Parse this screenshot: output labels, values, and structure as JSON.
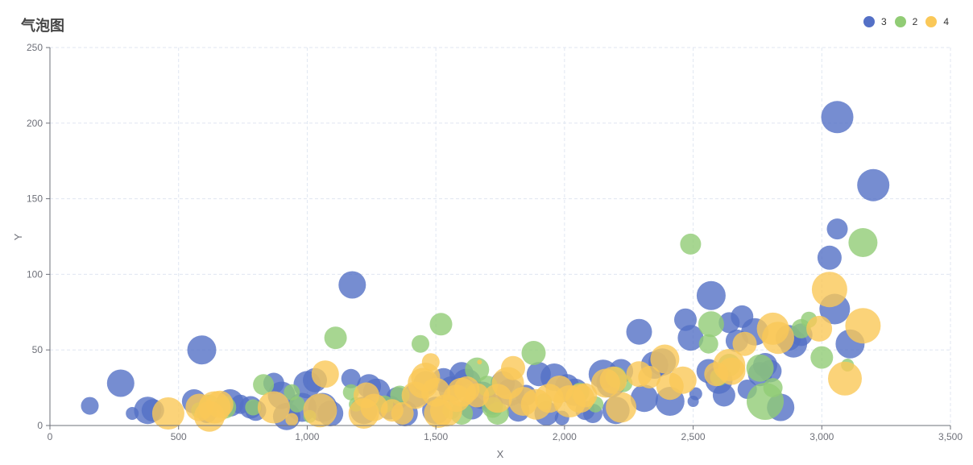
{
  "title": "气泡图",
  "legend": [
    {
      "name": "3",
      "color": "#5470c6"
    },
    {
      "name": "2",
      "color": "#91cc75"
    },
    {
      "name": "4",
      "color": "#fac858"
    }
  ],
  "chart_data": {
    "type": "scatter",
    "subtype": "bubble",
    "title": "气泡图",
    "xlabel": "X",
    "ylabel": "Y",
    "xlim": [
      0,
      3500
    ],
    "ylim": [
      0,
      250
    ],
    "xticks": [
      0,
      500,
      1000,
      1500,
      2000,
      2500,
      3000,
      3500
    ],
    "xtick_labels": [
      "0",
      "500",
      "1,000",
      "1,500",
      "2,000",
      "2,500",
      "3,000",
      "3,500"
    ],
    "yticks": [
      0,
      50,
      100,
      150,
      200,
      250
    ],
    "ytick_labels": [
      "0",
      "50",
      "100",
      "150",
      "200",
      "250"
    ],
    "grid": true,
    "legend_position": "top-right",
    "note": "each point is [x, y, bubble_radius_px]",
    "series": [
      {
        "name": "3",
        "color": "#5470c6",
        "points": [
          [
            155,
            13,
            11
          ],
          [
            275,
            28,
            17
          ],
          [
            320,
            8,
            8
          ],
          [
            380,
            10,
            17
          ],
          [
            400,
            10,
            14
          ],
          [
            560,
            16,
            15
          ],
          [
            590,
            50,
            18
          ],
          [
            610,
            8,
            12
          ],
          [
            700,
            15,
            17
          ],
          [
            740,
            14,
            12
          ],
          [
            780,
            12,
            14
          ],
          [
            800,
            10,
            13
          ],
          [
            870,
            28,
            13
          ],
          [
            900,
            20,
            17
          ],
          [
            920,
            6,
            17
          ],
          [
            980,
            12,
            18
          ],
          [
            1000,
            27,
            17
          ],
          [
            1030,
            30,
            15
          ],
          [
            1060,
            12,
            18
          ],
          [
            1090,
            8,
            16
          ],
          [
            1170,
            31,
            12
          ],
          [
            1175,
            93,
            17
          ],
          [
            1220,
            10,
            17
          ],
          [
            1240,
            26,
            15
          ],
          [
            1270,
            22,
            17
          ],
          [
            1320,
            12,
            15
          ],
          [
            1350,
            18,
            14
          ],
          [
            1380,
            8,
            16
          ],
          [
            1420,
            20,
            15
          ],
          [
            1460,
            28,
            15
          ],
          [
            1500,
            10,
            17
          ],
          [
            1530,
            30,
            15
          ],
          [
            1560,
            24,
            16
          ],
          [
            1600,
            34,
            15
          ],
          [
            1620,
            28,
            18
          ],
          [
            1640,
            12,
            15
          ],
          [
            1680,
            20,
            17
          ],
          [
            1720,
            14,
            13
          ],
          [
            1760,
            28,
            15
          ],
          [
            1790,
            22,
            17
          ],
          [
            1820,
            10,
            14
          ],
          [
            1850,
            20,
            13
          ],
          [
            1900,
            34,
            15
          ],
          [
            1930,
            8,
            15
          ],
          [
            1960,
            32,
            17
          ],
          [
            1990,
            5,
            9
          ],
          [
            2010,
            26,
            15
          ],
          [
            2040,
            22,
            17
          ],
          [
            2080,
            10,
            12
          ],
          [
            2110,
            8,
            12
          ],
          [
            2150,
            34,
            18
          ],
          [
            2180,
            28,
            18
          ],
          [
            2200,
            10,
            17
          ],
          [
            2220,
            36,
            15
          ],
          [
            2290,
            62,
            16
          ],
          [
            2310,
            18,
            17
          ],
          [
            2350,
            40,
            17
          ],
          [
            2380,
            42,
            17
          ],
          [
            2410,
            16,
            18
          ],
          [
            2470,
            70,
            14
          ],
          [
            2490,
            58,
            16
          ],
          [
            2510,
            21,
            8
          ],
          [
            2500,
            16,
            7
          ],
          [
            2570,
            86,
            18
          ],
          [
            2560,
            36,
            15
          ],
          [
            2600,
            30,
            17
          ],
          [
            2620,
            20,
            14
          ],
          [
            2640,
            68,
            13
          ],
          [
            2670,
            56,
            14
          ],
          [
            2690,
            72,
            14
          ],
          [
            2710,
            24,
            12
          ],
          [
            2740,
            62,
            17
          ],
          [
            2760,
            34,
            15
          ],
          [
            2780,
            40,
            15
          ],
          [
            2800,
            36,
            14
          ],
          [
            2840,
            12,
            17
          ],
          [
            2870,
            58,
            16
          ],
          [
            2890,
            54,
            17
          ],
          [
            2920,
            60,
            14
          ],
          [
            3030,
            111,
            15
          ],
          [
            3050,
            77,
            19
          ],
          [
            3060,
            130,
            13
          ],
          [
            3060,
            204,
            20
          ],
          [
            3110,
            54,
            18
          ],
          [
            3200,
            159,
            20
          ]
        ]
      },
      {
        "name": "2",
        "color": "#91cc75",
        "points": [
          [
            580,
            10,
            10
          ],
          [
            620,
            14,
            12
          ],
          [
            680,
            12,
            14
          ],
          [
            790,
            12,
            10
          ],
          [
            830,
            27,
            13
          ],
          [
            940,
            22,
            10
          ],
          [
            960,
            14,
            10
          ],
          [
            1010,
            6,
            8
          ],
          [
            1110,
            58,
            14
          ],
          [
            1170,
            22,
            10
          ],
          [
            1190,
            14,
            9
          ],
          [
            1300,
            14,
            11
          ],
          [
            1360,
            20,
            12
          ],
          [
            1440,
            54,
            11
          ],
          [
            1520,
            67,
            14
          ],
          [
            1560,
            10,
            11
          ],
          [
            1600,
            8,
            14
          ],
          [
            1660,
            37,
            15
          ],
          [
            1700,
            26,
            13
          ],
          [
            1720,
            12,
            13
          ],
          [
            1740,
            8,
            14
          ],
          [
            1880,
            48,
            15
          ],
          [
            1920,
            16,
            10
          ],
          [
            2060,
            22,
            12
          ],
          [
            2120,
            14,
            10
          ],
          [
            2200,
            32,
            13
          ],
          [
            2230,
            28,
            11
          ],
          [
            2490,
            120,
            13
          ],
          [
            2560,
            54,
            12
          ],
          [
            2570,
            67,
            16
          ],
          [
            2600,
            32,
            11
          ],
          [
            2640,
            40,
            14
          ],
          [
            2760,
            38,
            17
          ],
          [
            2780,
            16,
            23
          ],
          [
            2810,
            25,
            12
          ],
          [
            2920,
            64,
            12
          ],
          [
            2950,
            70,
            10
          ],
          [
            3000,
            45,
            14
          ],
          [
            3100,
            40,
            8
          ],
          [
            3160,
            121,
            18
          ]
        ]
      },
      {
        "name": "4",
        "color": "#fac858",
        "points": [
          [
            460,
            8,
            20
          ],
          [
            580,
            12,
            17
          ],
          [
            620,
            6,
            19
          ],
          [
            640,
            12,
            20
          ],
          [
            660,
            14,
            17
          ],
          [
            870,
            12,
            20
          ],
          [
            940,
            4,
            8
          ],
          [
            1050,
            10,
            21
          ],
          [
            1070,
            34,
            17
          ],
          [
            1220,
            8,
            19
          ],
          [
            1230,
            20,
            16
          ],
          [
            1260,
            12,
            17
          ],
          [
            1330,
            10,
            14
          ],
          [
            1370,
            8,
            14
          ],
          [
            1420,
            20,
            17
          ],
          [
            1450,
            28,
            19
          ],
          [
            1460,
            32,
            18
          ],
          [
            1480,
            42,
            11
          ],
          [
            1500,
            22,
            18
          ],
          [
            1510,
            8,
            18
          ],
          [
            1540,
            10,
            20
          ],
          [
            1580,
            18,
            17
          ],
          [
            1600,
            22,
            18
          ],
          [
            1620,
            24,
            16
          ],
          [
            1660,
            20,
            15
          ],
          [
            1670,
            42,
            3
          ],
          [
            1740,
            18,
            18
          ],
          [
            1780,
            28,
            20
          ],
          [
            1800,
            38,
            15
          ],
          [
            1840,
            16,
            18
          ],
          [
            1890,
            14,
            19
          ],
          [
            1940,
            18,
            18
          ],
          [
            1980,
            24,
            17
          ],
          [
            2020,
            16,
            20
          ],
          [
            2060,
            18,
            18
          ],
          [
            2080,
            20,
            15
          ],
          [
            2160,
            28,
            18
          ],
          [
            2190,
            30,
            17
          ],
          [
            2220,
            12,
            19
          ],
          [
            2290,
            34,
            16
          ],
          [
            2330,
            32,
            14
          ],
          [
            2390,
            44,
            18
          ],
          [
            2410,
            26,
            17
          ],
          [
            2460,
            30,
            17
          ],
          [
            2590,
            34,
            15
          ],
          [
            2640,
            40,
            20
          ],
          [
            2650,
            36,
            17
          ],
          [
            2700,
            54,
            15
          ],
          [
            2810,
            64,
            20
          ],
          [
            2830,
            58,
            20
          ],
          [
            2990,
            64,
            16
          ],
          [
            3030,
            90,
            22
          ],
          [
            3090,
            31,
            21
          ],
          [
            3160,
            66,
            22
          ]
        ]
      }
    ]
  }
}
